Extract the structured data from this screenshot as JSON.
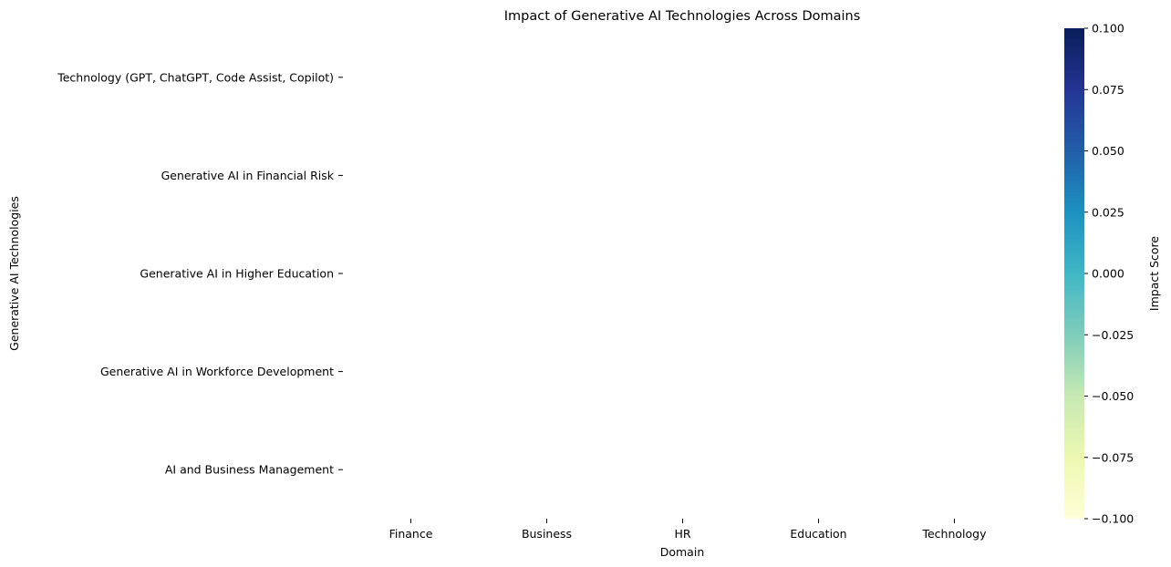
{
  "chart_data": {
    "type": "heatmap",
    "title": "Impact of Generative AI Technologies Across Domains",
    "xlabel": "Domain",
    "ylabel": "Generative AI Technologies",
    "x_categories": [
      "Finance",
      "Business",
      "HR",
      "Education",
      "Technology"
    ],
    "y_categories": [
      "Technology (GPT, ChatGPT, Code Assist, Copilot)",
      "Generative AI in Financial Risk",
      "Generative AI in Higher Education",
      "Generative AI in Workforce Development",
      "AI and Business Management"
    ],
    "values": [
      [
        null,
        null,
        null,
        null,
        null
      ],
      [
        null,
        null,
        null,
        null,
        null
      ],
      [
        null,
        null,
        null,
        null,
        null
      ],
      [
        null,
        null,
        null,
        null,
        null
      ],
      [
        null,
        null,
        null,
        null,
        null
      ]
    ],
    "colorbar": {
      "label": "Impact Score",
      "range": [
        -0.1,
        0.1
      ],
      "ticks": [
        "0.100",
        "0.075",
        "0.050",
        "0.025",
        "0.000",
        "−0.025",
        "−0.050",
        "−0.075",
        "−0.100"
      ],
      "colormap": [
        "#ffffd9",
        "#edf8b1",
        "#c7e9b4",
        "#7fcdbb",
        "#41b6c4",
        "#1d91c0",
        "#225ea8",
        "#253494",
        "#081d58"
      ]
    },
    "grid": false
  }
}
